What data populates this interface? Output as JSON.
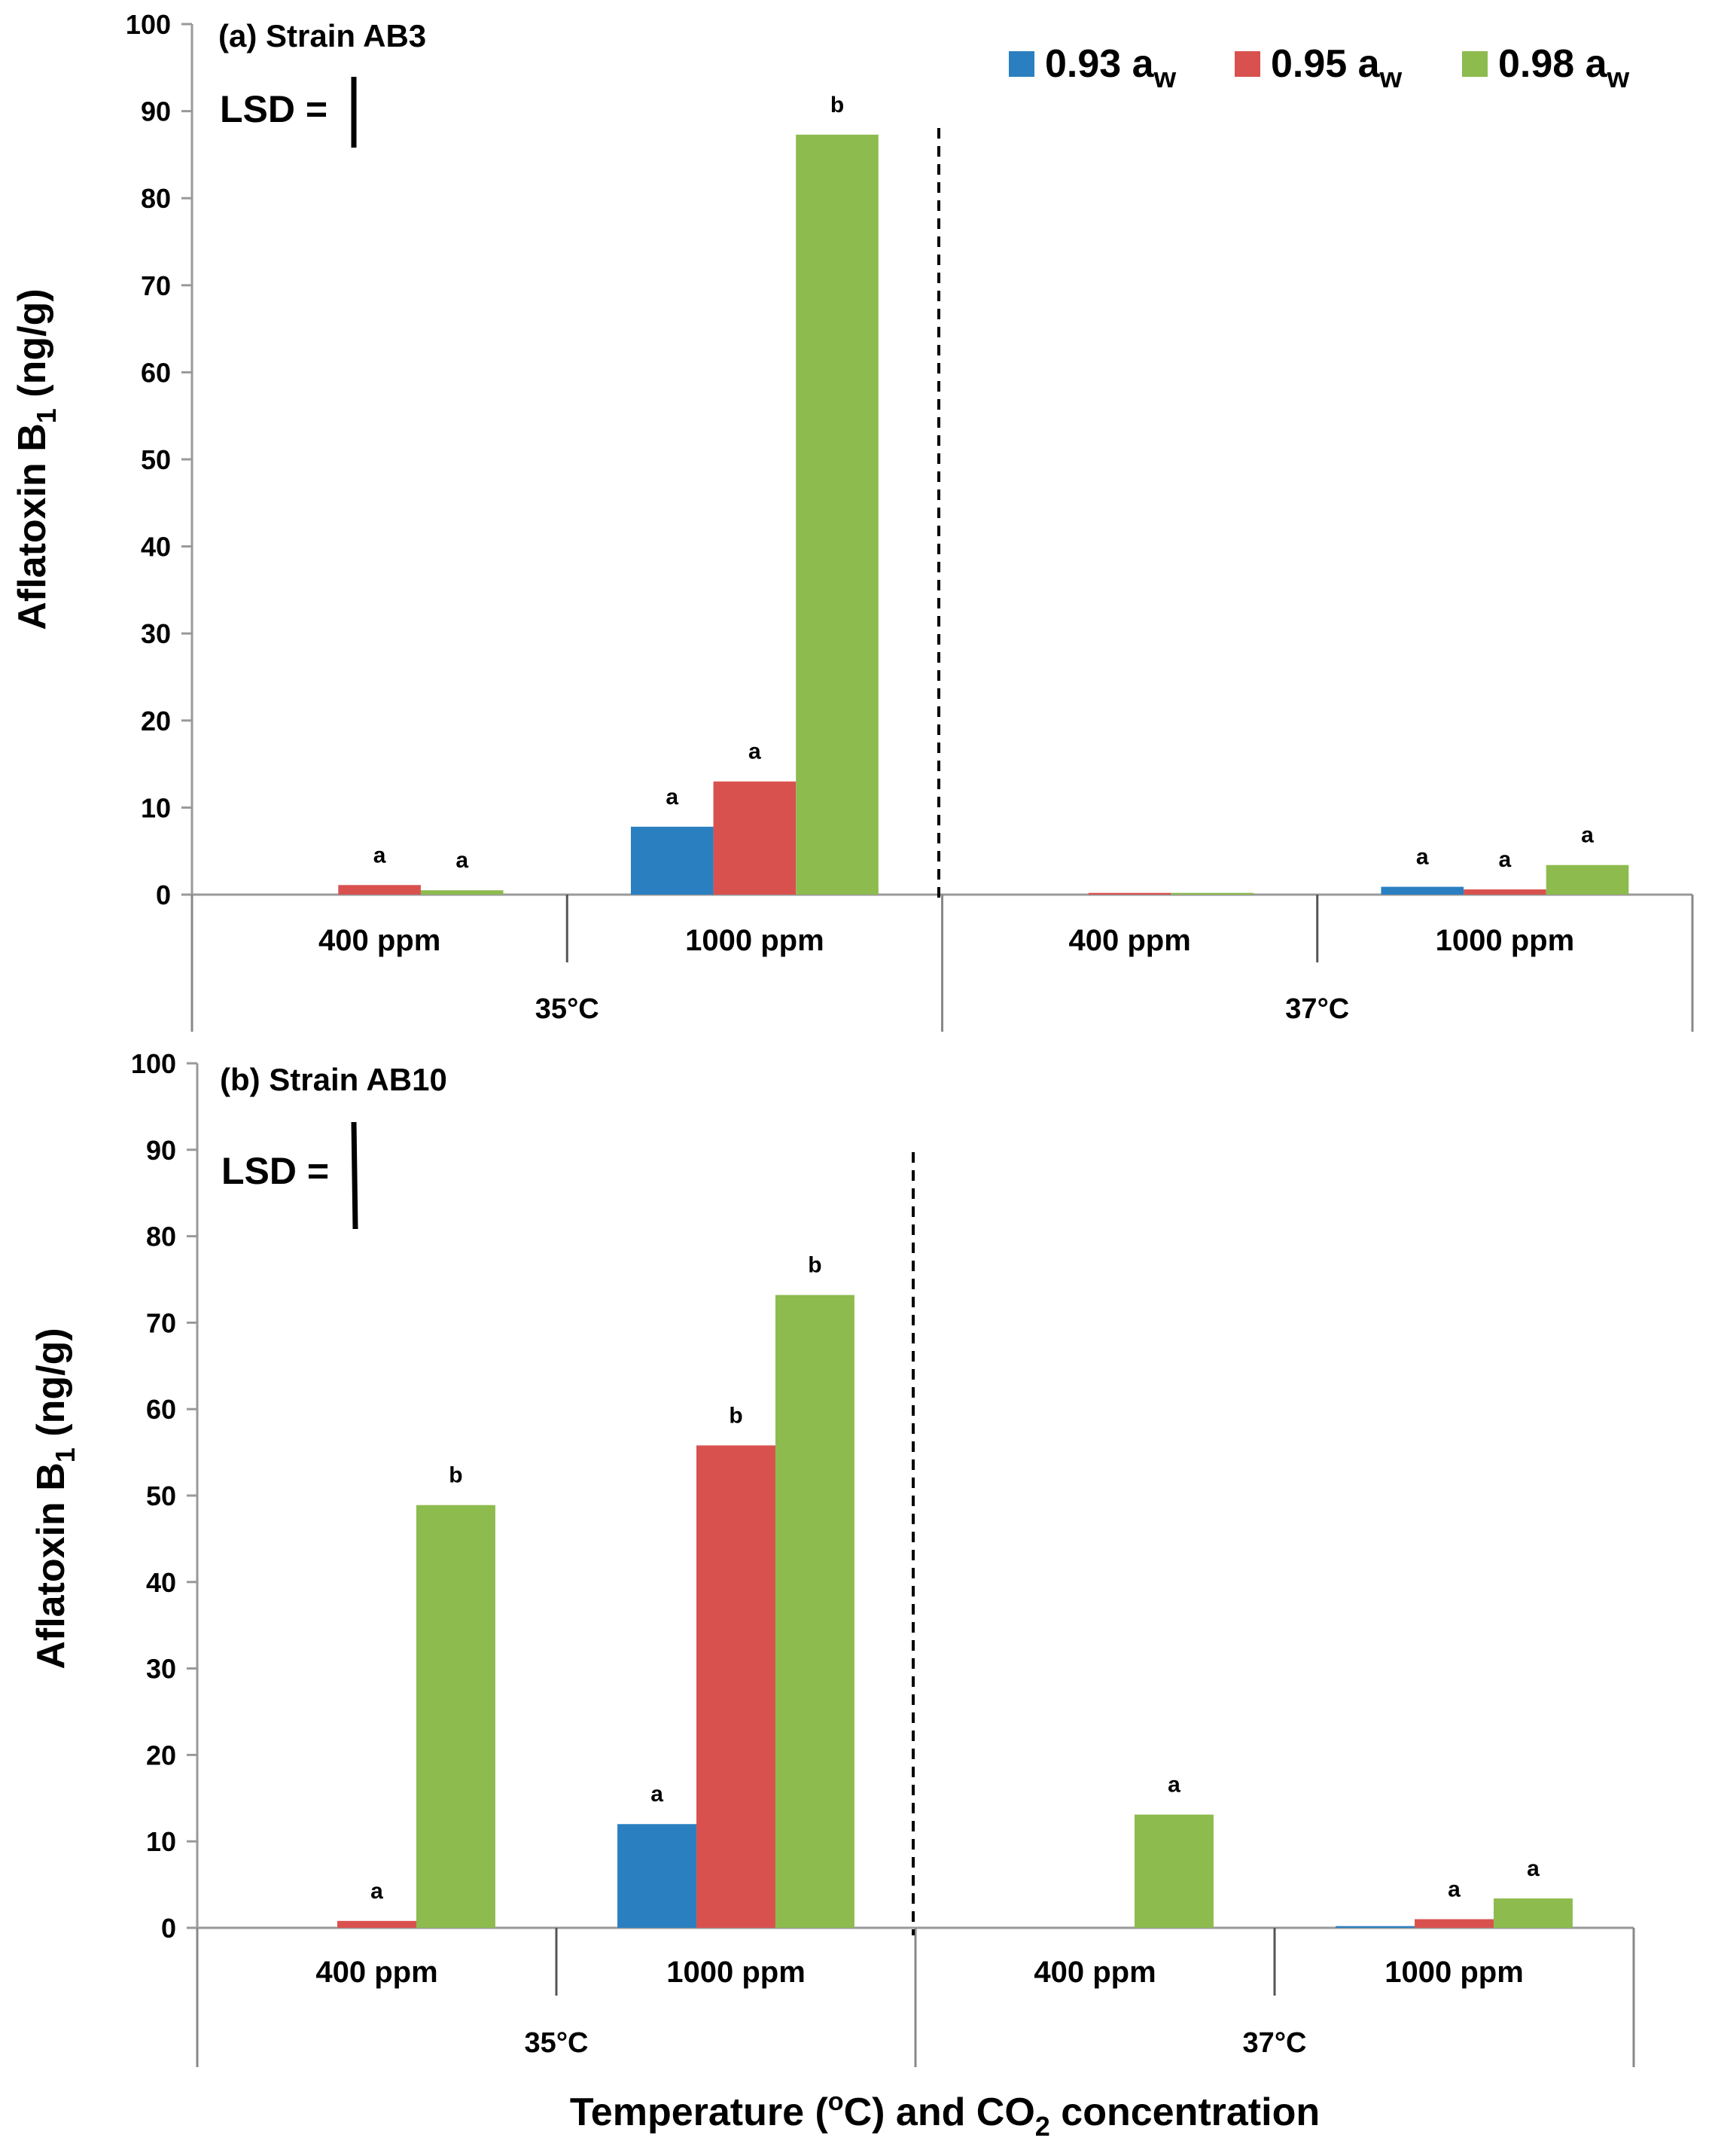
{
  "chart_data": [
    {
      "type": "bar",
      "title": "(a) Strain AB3",
      "ylabel_main": "Aflatoxin B",
      "ylabel_sub": "1",
      "ylabel_unit": " (ng/g)",
      "lsd_label": "LSD =",
      "ylim": [
        0,
        100
      ],
      "yticks": [
        0,
        10,
        20,
        30,
        40,
        50,
        60,
        70,
        80,
        90,
        100
      ],
      "groups": [
        "35°C",
        "37°C"
      ],
      "categories": [
        "400 ppm",
        "1000 ppm",
        "400 ppm",
        "1000 ppm"
      ],
      "series": [
        {
          "name": "0.93",
          "values": [
            0,
            7.8,
            0,
            0.9
          ],
          "letters": [
            "",
            "a",
            "",
            "a"
          ]
        },
        {
          "name": "0.95",
          "values": [
            1.1,
            13.0,
            0.2,
            0.6
          ],
          "letters": [
            "a",
            "a",
            "",
            "a"
          ]
        },
        {
          "name": "0.98",
          "values": [
            0.5,
            87.3,
            0.2,
            3.4
          ],
          "letters": [
            "a",
            "b",
            "",
            "a"
          ]
        }
      ]
    },
    {
      "type": "bar",
      "title": "(b) Strain AB10",
      "ylabel_main": "Aflatoxin B",
      "ylabel_sub": "1",
      "ylabel_unit": " (ng/g)",
      "lsd_label": "LSD =",
      "ylim": [
        0,
        100
      ],
      "yticks": [
        0,
        10,
        20,
        30,
        40,
        50,
        60,
        70,
        80,
        90,
        100
      ],
      "groups": [
        "35°C",
        "37°C"
      ],
      "categories": [
        "400 ppm",
        "1000 ppm",
        "400 ppm",
        "1000 ppm"
      ],
      "series": [
        {
          "name": "0.93",
          "values": [
            0,
            12.0,
            0,
            0.2
          ],
          "letters": [
            "",
            "a",
            "",
            ""
          ]
        },
        {
          "name": "0.95",
          "values": [
            0.8,
            55.8,
            0,
            1.0
          ],
          "letters": [
            "a",
            "b",
            "",
            "a"
          ]
        },
        {
          "name": "0.98",
          "values": [
            48.9,
            73.2,
            13.1,
            3.4
          ],
          "letters": [
            "b",
            "b",
            "a",
            "a"
          ]
        }
      ]
    }
  ],
  "legend": {
    "placement": "top-right",
    "unit_main": "a",
    "unit_sub": "w",
    "entries": [
      "0.93",
      "0.95",
      "0.98"
    ]
  },
  "colors": [
    "#2a7fc0",
    "#d9514f",
    "#8dbb4e"
  ],
  "xlabel": {
    "part1": "Temperature (",
    "sup": "o",
    "part2": "C) and CO",
    "sub": "2",
    "part3": " concentration"
  }
}
